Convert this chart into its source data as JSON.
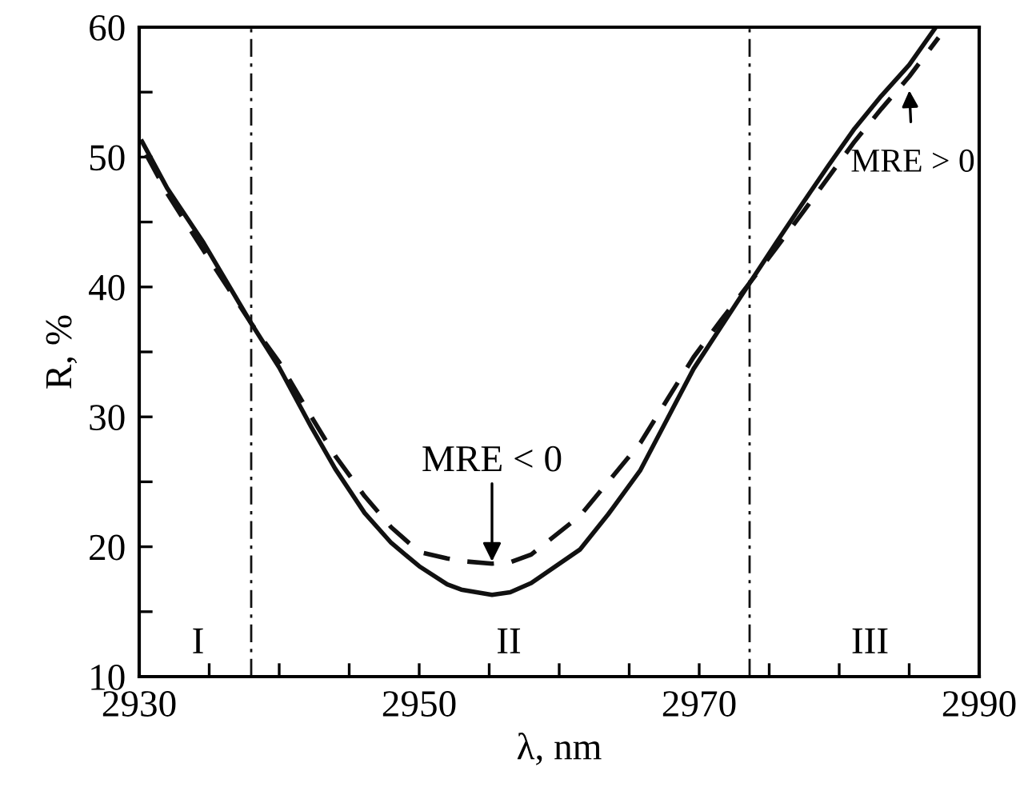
{
  "chart_data": {
    "type": "line",
    "xlabel": "λ, nm",
    "ylabel": "R, %",
    "xlim": [
      2930,
      2990
    ],
    "ylim": [
      10,
      60
    ],
    "xticks": [
      2930,
      {
        "value": 2935,
        "label": null
      },
      {
        "value": 2940,
        "label": null
      },
      {
        "value": 2945,
        "label": null
      },
      2950,
      {
        "value": 2955,
        "label": null
      },
      {
        "value": 2960,
        "label": null
      },
      {
        "value": 2965,
        "label": null
      },
      2970,
      {
        "value": 2975,
        "label": null
      },
      {
        "value": 2980,
        "label": null
      },
      {
        "value": 2985,
        "label": null
      },
      2990
    ],
    "yticks": [
      10,
      {
        "value": 15,
        "label": null
      },
      20,
      {
        "value": 25,
        "label": null
      },
      30,
      {
        "value": 35,
        "label": null
      },
      40,
      {
        "value": 45,
        "label": null
      },
      50,
      {
        "value": 55,
        "label": null
      },
      60
    ],
    "grid": false,
    "series": [
      {
        "color": "#111111",
        "line_style": "solid",
        "x": [
          2930.2,
          2932,
          2934.6,
          2938,
          2940,
          2942.3,
          2944,
          2946.1,
          2948,
          2950,
          2952,
          2953,
          2955.2,
          2956.5,
          2958,
          2961.5,
          2963.5,
          2965.8,
          2967.7,
          2969.6,
          2971.6,
          2973.6,
          2975.5,
          2977.3,
          2979.2,
          2981.1,
          2983,
          2985,
          2986.9
        ],
        "values": [
          51.2,
          47.6,
          43.4,
          37.2,
          33.8,
          29.2,
          26.0,
          22.6,
          20.3,
          18.5,
          17.1,
          16.7,
          16.3,
          16.5,
          17.2,
          19.8,
          22.5,
          25.9,
          29.8,
          33.7,
          37.0,
          40.3,
          43.4,
          46.3,
          49.3,
          52.2,
          54.7,
          57.1,
          60
        ]
      },
      {
        "color": "#111111",
        "line_style": "dashed",
        "x": [
          2930.5,
          2932,
          2934.6,
          2938,
          2940,
          2942.3,
          2944,
          2946.1,
          2948,
          2950,
          2952,
          2953,
          2955.2,
          2956.5,
          2958,
          2961.5,
          2963.5,
          2965.8,
          2967.7,
          2969.6,
          2971.6,
          2973.6,
          2975.5,
          2977.3,
          2979.2,
          2981.1,
          2983,
          2985,
          2987.1
        ],
        "values": [
          50.2,
          47.2,
          42.8,
          37.2,
          34.2,
          30.0,
          27.0,
          23.9,
          21.5,
          19.6,
          19.1,
          18.9,
          18.7,
          18.8,
          19.4,
          22.4,
          25.0,
          28.0,
          31.3,
          34.6,
          37.5,
          40.3,
          43.0,
          45.6,
          48.4,
          51.2,
          53.7,
          56.2,
          59.2
        ]
      }
    ],
    "ref_lines": [
      {
        "axis": "x",
        "value": 2938,
        "line_style": "dashdot",
        "color": "#111111"
      },
      {
        "axis": "x",
        "value": 2973.6,
        "line_style": "dashdot",
        "color": "#111111"
      }
    ],
    "annotations": [
      {
        "text": "MRE < 0",
        "x": 2955.2,
        "y": 18.7
      },
      {
        "text": "MRE > 0",
        "x": 2985,
        "y": 55.3
      },
      "I",
      "II",
      "III"
    ]
  }
}
